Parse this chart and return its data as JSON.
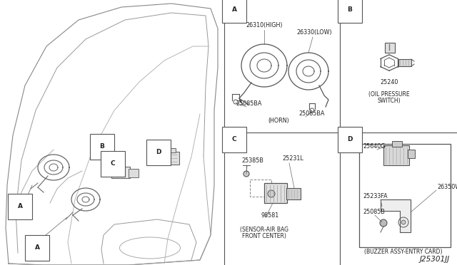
{
  "border_color": "#555555",
  "line_color": "#444444",
  "text_color": "#222222",
  "diagram_id": "J25301JJ",
  "fs_label": 6.5,
  "fs_part": 5.8,
  "fs_caption": 5.5,
  "fs_id": 7.5,
  "section_labels": [
    "A",
    "B",
    "C",
    "D"
  ],
  "part_labels": {
    "horn_high": "26310(HIGH)",
    "horn_low": "26330(LOW)",
    "horn_bolt1": "25085BA",
    "horn_bolt2": "25085BA",
    "horn_caption": "(HORN)",
    "oil_num": "25240",
    "oil_caption1": "(OIL PRESSURE",
    "oil_caption2": "SWITCH)",
    "ab_p1": "25385B",
    "ab_p2": "25231L",
    "ab_p3": "98581",
    "ab_cap1": "(SENSOR-AIR BAG",
    "ab_cap2": "FRONT CENTER)",
    "bz_p1": "25640G",
    "bz_p2": "26350W",
    "bz_p3": "25233FA",
    "bz_p4": "25085B",
    "bz_caption": "(BUZZER ASSY-ENTRY CARD)"
  }
}
